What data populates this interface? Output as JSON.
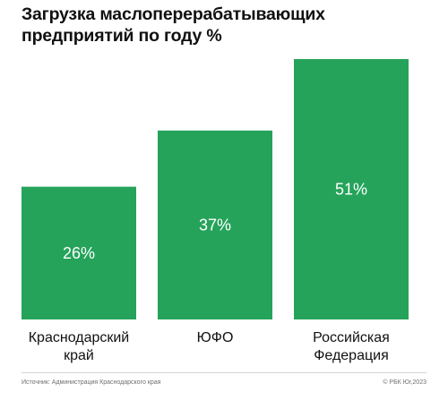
{
  "header": {
    "title": "Загрузка маслоперерабатывающих предприятий по году %"
  },
  "chart_data": {
    "type": "bar",
    "title": "Загрузка маслоперерабатывающих предприятий по году %",
    "categories": [
      "Краснодарский край",
      "ЮФО",
      "Российская Федерация"
    ],
    "category_lines": [
      [
        "Краснодарский",
        "край"
      ],
      [
        "ЮФО"
      ],
      [
        "Российская",
        "Федерация"
      ]
    ],
    "values": [
      26,
      37,
      51
    ],
    "value_labels": [
      "26%",
      "37%",
      "51%"
    ],
    "unit": "%",
    "ylim": [
      0,
      51
    ],
    "grid": false,
    "legend": "none",
    "bar_color": "#25a35a",
    "label_color": "#ffffff"
  },
  "footer": {
    "source": "Источник: Администрация Краснодарского края",
    "credit": "© РБК Юг,2023"
  }
}
